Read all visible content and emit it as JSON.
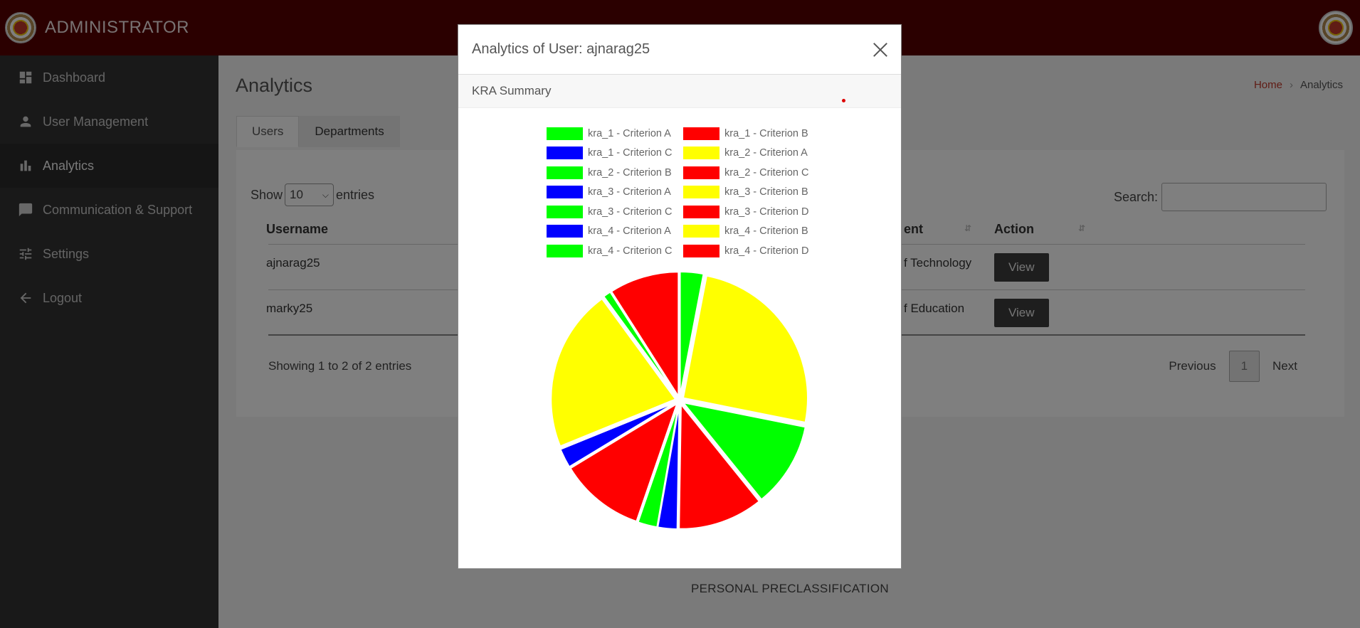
{
  "header": {
    "title": "ADMINISTRATOR"
  },
  "sidebar": {
    "items": [
      {
        "label": "Dashboard",
        "icon": "dashboard-icon",
        "active": false
      },
      {
        "label": "User Management",
        "icon": "user-icon",
        "active": false
      },
      {
        "label": "Analytics",
        "icon": "bar-chart-icon",
        "active": true
      },
      {
        "label": "Communication & Support",
        "icon": "chat-icon",
        "active": false
      },
      {
        "label": "Settings",
        "icon": "sliders-icon",
        "active": false
      },
      {
        "label": "Logout",
        "icon": "arrow-left-icon",
        "active": false
      }
    ]
  },
  "main": {
    "title": "Analytics",
    "breadcrumb": {
      "home": "Home",
      "current": "Analytics"
    },
    "tabs": [
      "Users",
      "Departments"
    ],
    "show_label": "Show",
    "entries_label": "entries",
    "page_size": "10",
    "search_label": "Search:",
    "columns": [
      "Username",
      "ent",
      "Action"
    ],
    "rows": [
      {
        "username": "ajnarag25",
        "department": "f Technology",
        "action": "View"
      },
      {
        "username": "marky25",
        "department": "f Education",
        "action": "View"
      }
    ],
    "info": "Showing 1 to 2 of 2 entries",
    "pager": {
      "previous": "Previous",
      "page": "1",
      "next": "Next"
    },
    "footer": "PERSONAL PRECLASSIFICATION"
  },
  "modal": {
    "title": "Analytics of User: ajnarag25",
    "section": "KRA Summary"
  },
  "colors": {
    "green": "#00ff00",
    "red": "#ff0000",
    "blue": "#0000ff",
    "yellow": "#ffff00",
    "topbar": "#560000",
    "sidebar": "#333333"
  },
  "chart_data": {
    "type": "pie",
    "legend_position": "top",
    "slices": [
      {
        "label": "kra_1 - Criterion A",
        "color": "#00ff00",
        "value": 3
      },
      {
        "label": "kra_1 - Criterion B",
        "color": "#ff0000",
        "value": 0
      },
      {
        "label": "kra_1 - Criterion C",
        "color": "#0000ff",
        "value": 0
      },
      {
        "label": "kra_2 - Criterion A",
        "color": "#ffff00",
        "value": 25
      },
      {
        "label": "kra_2 - Criterion B",
        "color": "#00ff00",
        "value": 11
      },
      {
        "label": "kra_2 - Criterion C",
        "color": "#ff0000",
        "value": 11
      },
      {
        "label": "kra_3 - Criterion A",
        "color": "#0000ff",
        "value": 2.5
      },
      {
        "label": "kra_3 - Criterion B",
        "color": "#ffff00",
        "value": 0
      },
      {
        "label": "kra_3 - Criterion C",
        "color": "#00ff00",
        "value": 2.5
      },
      {
        "label": "kra_3 - Criterion D",
        "color": "#ff0000",
        "value": 11
      },
      {
        "label": "kra_4 - Criterion A",
        "color": "#0000ff",
        "value": 2.5
      },
      {
        "label": "kra_4 - Criterion B",
        "color": "#ffff00",
        "value": 21
      },
      {
        "label": "kra_4 - Criterion C",
        "color": "#00ff00",
        "value": 1
      },
      {
        "label": "kra_4 - Criterion D",
        "color": "#ff0000",
        "value": 9
      }
    ]
  }
}
